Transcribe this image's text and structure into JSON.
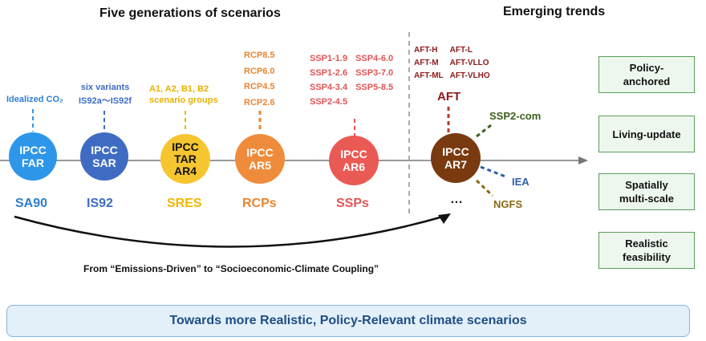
{
  "headers": {
    "left": "Five generations of scenarios",
    "right": "Emerging trends"
  },
  "generations": [
    {
      "circle": [
        "IPCC",
        "FAR"
      ],
      "scenario": "SA90",
      "color": "#2e96e8",
      "scenario_color": "#2e7fd1",
      "label_lines": [
        "Idealized CO₂"
      ],
      "label_color": "#2e7fd1"
    },
    {
      "circle": [
        "IPCC",
        "SAR"
      ],
      "scenario": "IS92",
      "color": "#3f6cc2",
      "scenario_color": "#3f6cc2",
      "label_lines": [
        "six variants",
        "IS92a〜IS92f"
      ],
      "label_color": "#3f6cc2"
    },
    {
      "circle": [
        "IPCC",
        "TAR",
        "AR4"
      ],
      "scenario": "SRES",
      "color": "#f6c630",
      "scenario_color": "#f0b600",
      "label_lines": [
        "A1, A2, B1, B2",
        "scenario groups"
      ],
      "label_color": "#e8b100"
    },
    {
      "circle": [
        "IPCC",
        "AR5"
      ],
      "scenario": "RCPs",
      "color": "#ef8c3c",
      "scenario_color": "#ea8532",
      "label_lines": [
        "RCP8.5",
        "RCP6.0",
        "RCP4.5",
        "RCP2.6"
      ],
      "label_color": "#ea8532"
    },
    {
      "circle": [
        "IPCC",
        "AR6"
      ],
      "scenario": "SSPs",
      "color": "#ea5a55",
      "scenario_color": "#e05555",
      "ssp_list": [
        "SSP1-1.9",
        "SSP4-6.0",
        "SSP1-2.6",
        "SSP3-7.0",
        "SSP4-3.4",
        "SSP5-8.5",
        "SSP2-4.5",
        ""
      ]
    }
  ],
  "ar7": {
    "circle": [
      "IPCC",
      "AR7"
    ],
    "color": "#7a3a0f",
    "aft_label": "AFT",
    "aft_list": [
      "AFT-H",
      "AFT-L",
      "AFT-M",
      "AFT-VLLO",
      "AFT-ML",
      "AFT-VLHO"
    ],
    "aft_color": "#8b1a1a",
    "branches": {
      "ssp2com": "SSP2-com",
      "iea": "IEA",
      "ngfs": "NGFS",
      "more": "…"
    },
    "branch_colors": {
      "ssp2com": "#3d5f1f",
      "iea": "#2e5fa8",
      "ngfs": "#8a6a12"
    }
  },
  "trends": [
    [
      "Policy-",
      "anchored"
    ],
    [
      "Living-update"
    ],
    [
      "Spatially",
      "multi-scale"
    ],
    [
      "Realistic",
      "feasibility"
    ]
  ],
  "arrow_caption": "From “Emissions-Driven” to “Socioeconomic-Climate Coupling”",
  "bottom_banner": "Towards more Realistic, Policy-Relevant climate scenarios",
  "colors": {
    "timeline": "#777777",
    "trend_border": "#5a9e5a",
    "banner_text": "#1f4e85"
  }
}
